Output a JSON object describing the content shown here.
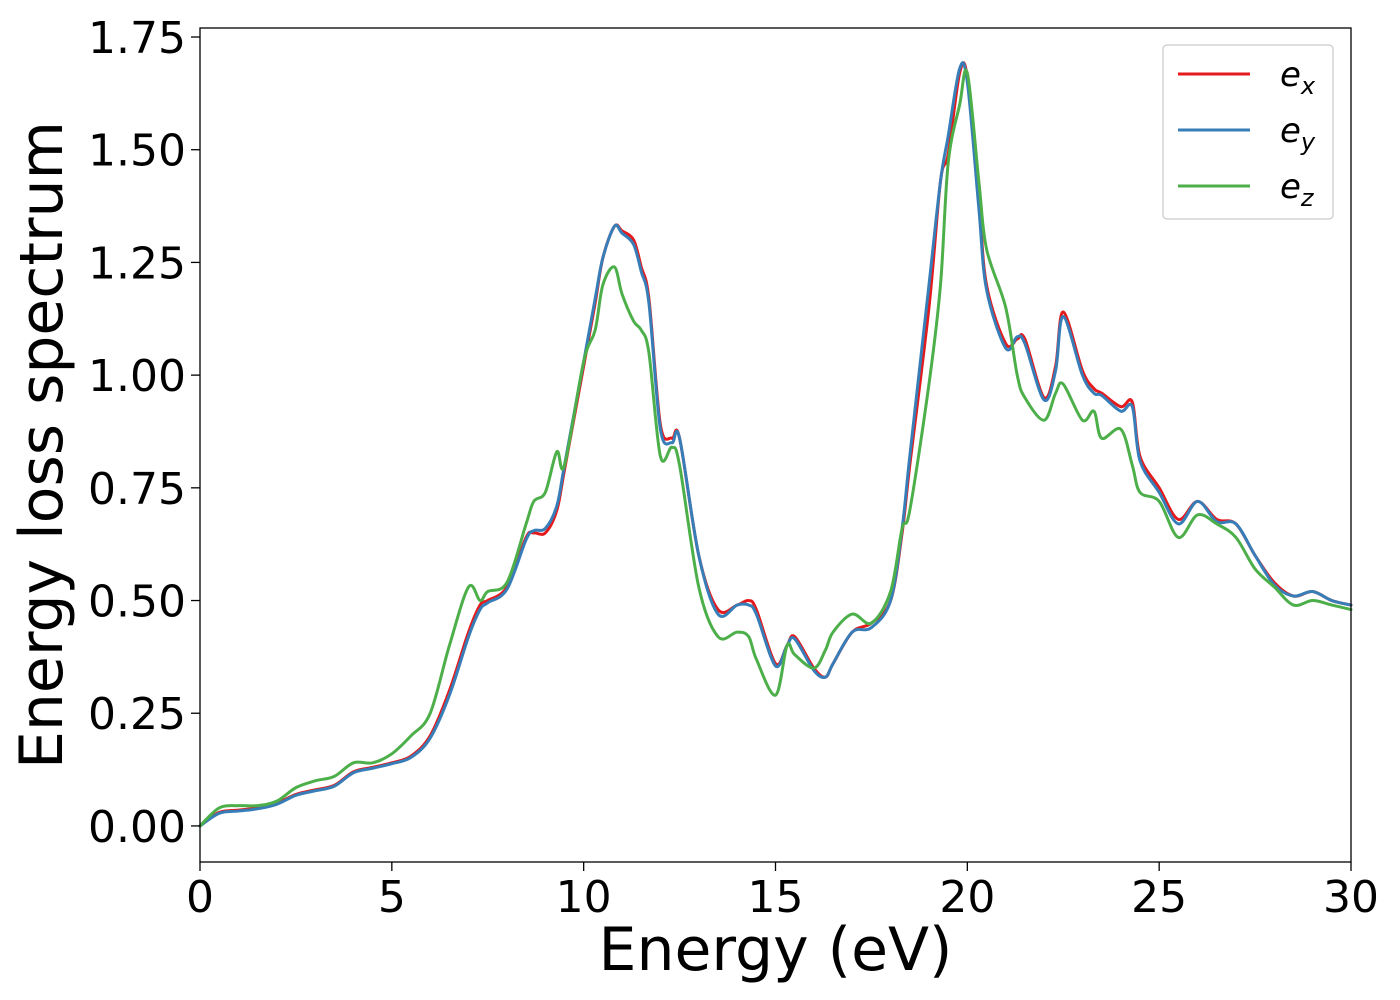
{
  "chart_data": {
    "type": "line",
    "title": "",
    "xlabel": "Energy (eV)",
    "ylabel": "Energy loss spectrum",
    "xlim": [
      0,
      30
    ],
    "ylim": [
      -0.08,
      1.77
    ],
    "xticks": [
      0,
      5,
      10,
      15,
      20,
      25,
      30
    ],
    "xtick_labels": [
      "0",
      "5",
      "10",
      "15",
      "20",
      "25",
      "30"
    ],
    "yticks": [
      0.0,
      0.25,
      0.5,
      0.75,
      1.0,
      1.25,
      1.5,
      1.75
    ],
    "ytick_labels": [
      "0.00",
      "0.25",
      "0.50",
      "0.75",
      "1.00",
      "1.25",
      "1.50",
      "1.75"
    ],
    "grid": false,
    "legend_position": "top-right",
    "series": [
      {
        "name": "e",
        "name_sub": "x",
        "color": "#e41a1c",
        "x": [
          0,
          0.5,
          1,
          1.5,
          2,
          2.5,
          3,
          3.5,
          4,
          4.5,
          5,
          5.5,
          6,
          6.5,
          7,
          7.3,
          7.5,
          8,
          8.5,
          8.7,
          9,
          9.3,
          9.5,
          10,
          10.3,
          10.5,
          10.8,
          11,
          11.3,
          11.5,
          11.7,
          12,
          12.3,
          12.5,
          13,
          13.5,
          14,
          14.3,
          14.5,
          15,
          15.3,
          15.5,
          16,
          16.3,
          16.5,
          17,
          17.5,
          18,
          18.3,
          18.5,
          19,
          19.3,
          19.5,
          19.8,
          20,
          20.3,
          20.5,
          21,
          21.3,
          21.5,
          22,
          22.3,
          22.5,
          23,
          23.3,
          23.5,
          24,
          24.3,
          24.5,
          25,
          25.5,
          26,
          26.5,
          27,
          27.5,
          28,
          28.5,
          29,
          29.5,
          30
        ],
        "y": [
          0.0,
          0.03,
          0.035,
          0.04,
          0.05,
          0.07,
          0.08,
          0.09,
          0.12,
          0.13,
          0.14,
          0.155,
          0.2,
          0.3,
          0.43,
          0.49,
          0.5,
          0.53,
          0.64,
          0.65,
          0.65,
          0.7,
          0.79,
          1.02,
          1.16,
          1.26,
          1.33,
          1.32,
          1.3,
          1.24,
          1.17,
          0.89,
          0.86,
          0.86,
          0.6,
          0.48,
          0.49,
          0.5,
          0.48,
          0.36,
          0.4,
          0.42,
          0.35,
          0.33,
          0.36,
          0.43,
          0.45,
          0.5,
          0.65,
          0.8,
          1.15,
          1.43,
          1.49,
          1.67,
          1.66,
          1.39,
          1.2,
          1.07,
          1.08,
          1.08,
          0.95,
          1.02,
          1.14,
          1.01,
          0.97,
          0.96,
          0.93,
          0.94,
          0.82,
          0.75,
          0.68,
          0.72,
          0.68,
          0.67,
          0.6,
          0.54,
          0.51,
          0.52,
          0.5,
          0.49
        ]
      },
      {
        "name": "e",
        "name_sub": "y",
        "color": "#377eb8",
        "x": [
          0,
          0.5,
          1,
          1.5,
          2,
          2.5,
          3,
          3.5,
          4,
          4.5,
          5,
          5.5,
          6,
          6.5,
          7,
          7.3,
          7.5,
          8,
          8.5,
          8.7,
          9,
          9.3,
          9.5,
          10,
          10.3,
          10.5,
          10.8,
          11,
          11.3,
          11.5,
          11.7,
          12,
          12.3,
          12.5,
          13,
          13.5,
          14,
          14.3,
          14.5,
          15,
          15.3,
          15.5,
          16,
          16.3,
          16.5,
          17,
          17.5,
          18,
          18.3,
          18.5,
          19,
          19.3,
          19.5,
          19.8,
          20,
          20.3,
          20.5,
          21,
          21.3,
          21.5,
          22,
          22.3,
          22.5,
          23,
          23.3,
          23.5,
          24,
          24.3,
          24.5,
          25,
          25.5,
          26,
          26.5,
          27,
          27.5,
          28,
          28.5,
          29,
          29.5,
          30
        ],
        "y": [
          0.0,
          0.028,
          0.033,
          0.038,
          0.048,
          0.068,
          0.078,
          0.088,
          0.118,
          0.128,
          0.138,
          0.152,
          0.195,
          0.29,
          0.42,
          0.48,
          0.495,
          0.525,
          0.635,
          0.655,
          0.66,
          0.71,
          0.8,
          1.03,
          1.17,
          1.26,
          1.33,
          1.315,
          1.29,
          1.23,
          1.16,
          0.88,
          0.85,
          0.86,
          0.6,
          0.47,
          0.49,
          0.49,
          0.47,
          0.355,
          0.4,
          0.415,
          0.345,
          0.33,
          0.36,
          0.43,
          0.44,
          0.5,
          0.66,
          0.82,
          1.2,
          1.43,
          1.53,
          1.68,
          1.65,
          1.37,
          1.19,
          1.06,
          1.085,
          1.07,
          0.945,
          1.01,
          1.13,
          1.0,
          0.96,
          0.955,
          0.92,
          0.93,
          0.81,
          0.74,
          0.67,
          0.72,
          0.675,
          0.67,
          0.6,
          0.535,
          0.51,
          0.52,
          0.5,
          0.49
        ]
      },
      {
        "name": "e",
        "name_sub": "z",
        "color": "#4daf4a",
        "x": [
          0,
          0.5,
          1,
          1.5,
          2,
          2.5,
          3,
          3.5,
          4,
          4.5,
          5,
          5.5,
          6,
          6.5,
          7,
          7.3,
          7.5,
          8,
          8.5,
          8.7,
          9,
          9.3,
          9.5,
          10,
          10.3,
          10.5,
          10.8,
          11,
          11.3,
          11.5,
          11.7,
          12,
          12.3,
          12.5,
          13,
          13.5,
          14,
          14.3,
          14.5,
          15,
          15.3,
          15.5,
          16,
          16.3,
          16.5,
          17,
          17.5,
          18,
          18.3,
          18.5,
          19,
          19.3,
          19.5,
          19.8,
          20,
          20.3,
          20.5,
          21,
          21.3,
          21.5,
          22,
          22.3,
          22.5,
          23,
          23.3,
          23.5,
          24,
          24.3,
          24.5,
          25,
          25.5,
          26,
          26.5,
          27,
          27.5,
          28,
          28.5,
          29,
          29.5,
          30
        ],
        "y": [
          0.0,
          0.04,
          0.045,
          0.045,
          0.055,
          0.085,
          0.1,
          0.11,
          0.14,
          0.14,
          0.16,
          0.2,
          0.25,
          0.4,
          0.53,
          0.5,
          0.52,
          0.54,
          0.67,
          0.72,
          0.74,
          0.83,
          0.8,
          1.03,
          1.1,
          1.2,
          1.24,
          1.18,
          1.12,
          1.1,
          1.05,
          0.82,
          0.84,
          0.8,
          0.53,
          0.42,
          0.43,
          0.42,
          0.37,
          0.29,
          0.4,
          0.38,
          0.35,
          0.39,
          0.43,
          0.47,
          0.45,
          0.52,
          0.66,
          0.7,
          0.98,
          1.2,
          1.47,
          1.6,
          1.67,
          1.43,
          1.28,
          1.15,
          1.0,
          0.95,
          0.9,
          0.96,
          0.98,
          0.9,
          0.92,
          0.86,
          0.88,
          0.8,
          0.74,
          0.72,
          0.64,
          0.69,
          0.67,
          0.64,
          0.57,
          0.53,
          0.49,
          0.5,
          0.49,
          0.48
        ]
      }
    ]
  }
}
